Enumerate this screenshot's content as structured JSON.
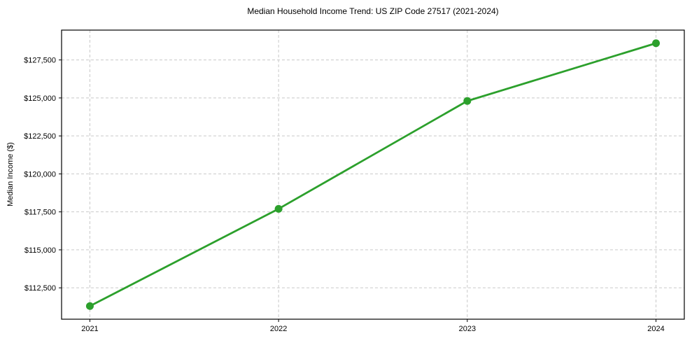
{
  "chart": {
    "title": "Median Household Income Trend: US ZIP Code 27517 (2021-2024)",
    "ylabel": "Median Income ($)",
    "xlabel": ""
  },
  "chart_data": {
    "type": "line",
    "x": [
      2021,
      2022,
      2023,
      2024
    ],
    "categories": [
      "2021",
      "2022",
      "2023",
      "2024"
    ],
    "values": [
      111300,
      117700,
      124800,
      128600
    ],
    "series": [
      {
        "name": "Median Household Income",
        "values": [
          111300,
          117700,
          124800,
          128600
        ]
      }
    ],
    "title": "Median Household Income Trend: US ZIP Code 27517 (2021-2024)",
    "xlabel": "",
    "ylabel": "Median Income ($)",
    "x_tick_labels": [
      "2021",
      "2022",
      "2023",
      "2024"
    ],
    "y_ticks": [
      112500,
      115000,
      117500,
      120000,
      122500,
      125000,
      127500
    ],
    "y_tick_labels": [
      "$112,500",
      "$115,000",
      "$117,500",
      "$120,000",
      "$122,500",
      "$125,000",
      "$127,500"
    ],
    "xlim": [
      2020.85,
      2024.15
    ],
    "ylim": [
      110435,
      129465
    ],
    "grid": true,
    "grid_style": "dashed",
    "legend": "none",
    "colors": {
      "line": "#2ca02c",
      "marker": "#2ca02c",
      "grid": "#c9c9c9",
      "spine": "#000000",
      "text": "#000000",
      "background": "#ffffff"
    }
  }
}
